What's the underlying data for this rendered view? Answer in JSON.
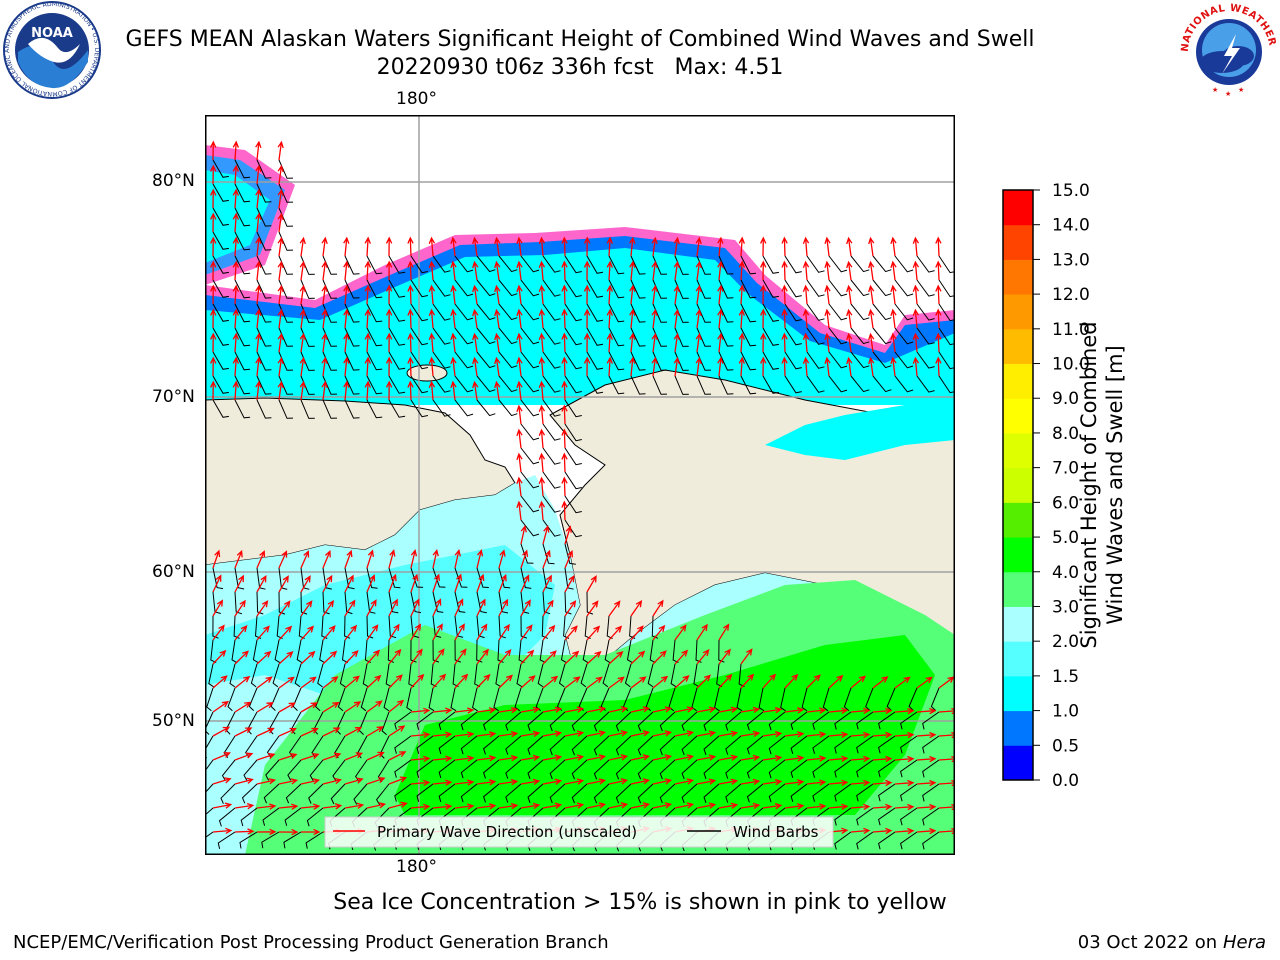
{
  "header": {
    "title": "GEFS MEAN Alaskan Waters Significant Height of Combined Wind Waves and Swell",
    "subtitle": "20220930 t06z 336h fcst   Max: 4.51"
  },
  "logos": {
    "noaa": {
      "text": "NOAA",
      "ring_text": "NATIONAL OCEANIC AND ATMOSPHERIC ADMINISTRATION • U.S. DEPARTMENT OF COMMERCE"
    },
    "nws": {
      "ring_text": "NATIONAL WEATHER SERVICE"
    }
  },
  "map": {
    "lat_labels": [
      "80°N",
      "70°N",
      "60°N",
      "50°N"
    ],
    "lon_label_top": "180°",
    "lon_label_bottom": "180°",
    "legend": {
      "wave_direction": "Primary Wave Direction (unscaled)",
      "wind_barbs": "Wind Barbs"
    },
    "colors": {
      "land": "#efecdc",
      "wave_arrow": "#ff0000",
      "wind_barb": "#000000"
    }
  },
  "colorbar": {
    "label_line1": "Significant Height of Combined",
    "label_line2": "Wind Waves and Swell [m]",
    "ticks": [
      "0.0",
      "0.5",
      "1.0",
      "1.5",
      "2.0",
      "3.0",
      "4.0",
      "5.0",
      "6.0",
      "7.0",
      "8.0",
      "9.0",
      "10.0",
      "11.0",
      "12.0",
      "13.0",
      "14.0",
      "15.0"
    ],
    "colors": [
      "#0000ff",
      "#0077ff",
      "#00ffff",
      "#55ffff",
      "#aaffff",
      "#55ff77",
      "#00ff00",
      "#55ee00",
      "#ccff00",
      "#ddff00",
      "#ffff00",
      "#ffee00",
      "#ffbb00",
      "#ff9900",
      "#ff7700",
      "#ff4400",
      "#ff0000"
    ]
  },
  "note": "Sea Ice Concentration > 15% is shown in pink to yellow",
  "footer": {
    "left": "NCEP/EMC/Verification Post Processing Product Generation Branch",
    "right_date": "03 Oct 2022 on ",
    "right_host": "Hera"
  }
}
